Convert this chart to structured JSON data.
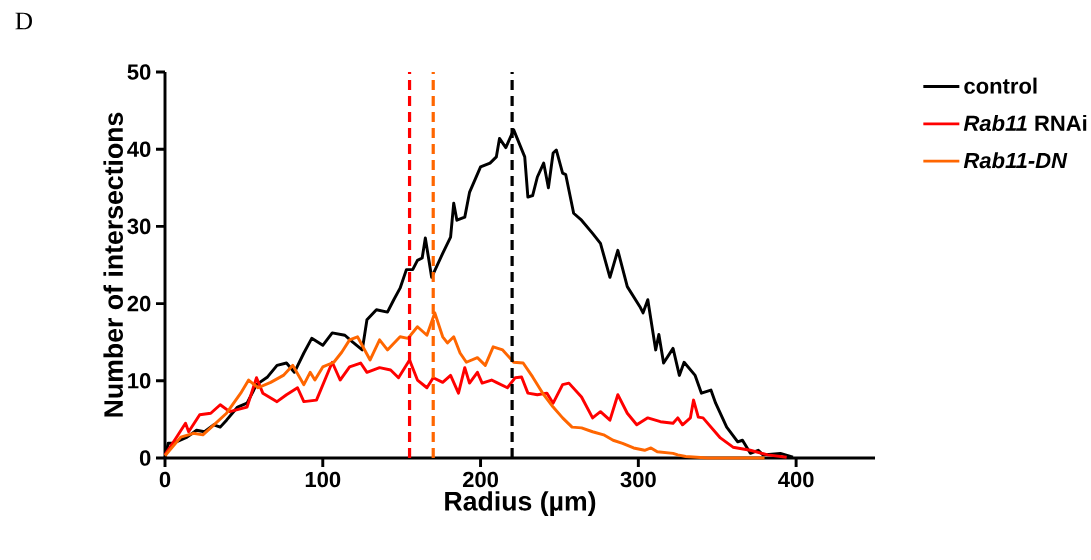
{
  "chart_data": {
    "type": "line",
    "xlabel": "Radius (µm)",
    "ylabel": "Number of intersections",
    "annotations": [
      "D"
    ],
    "xlim": [
      0,
      450
    ],
    "ylim": [
      0,
      50
    ],
    "xticks": [
      0,
      100,
      200,
      300,
      400
    ],
    "yticks": [
      0,
      10,
      20,
      30,
      40,
      50
    ],
    "legend": "top right",
    "marker": "none",
    "line_style": "solid",
    "series": [
      {
        "name": "control",
        "color": "#000000",
        "x": [
          0,
          2,
          5,
          14,
          20,
          25,
          31,
          35,
          39,
          46,
          52,
          58,
          65,
          71,
          77,
          82,
          88,
          93,
          100,
          106,
          114,
          119,
          125,
          128,
          134,
          141,
          145,
          149,
          153,
          157,
          160,
          163,
          165,
          169,
          176,
          181,
          183,
          185,
          190,
          193,
          200,
          206,
          210,
          212,
          216,
          221,
          228,
          230,
          233,
          236,
          240,
          243,
          246,
          248,
          252,
          254,
          259,
          264,
          271,
          276,
          282,
          287,
          293,
          301,
          303,
          306,
          311,
          313,
          316,
          322,
          326,
          329,
          336,
          340,
          346,
          349,
          356,
          363,
          366,
          371,
          376,
          379,
          390,
          398
        ],
        "values": [
          0,
          1.9,
          1.9,
          2.7,
          3.6,
          3.4,
          4.3,
          4,
          4.9,
          6.6,
          7.1,
          9.5,
          10.5,
          12,
          12.3,
          11.1,
          13.6,
          15.5,
          14.6,
          16.2,
          15.9,
          15,
          14,
          17.9,
          19.2,
          18.9,
          20.5,
          22,
          24.4,
          24.4,
          25.6,
          25.9,
          28.5,
          23.4,
          26.5,
          28.6,
          33,
          30.8,
          31.2,
          34.4,
          37.7,
          38.2,
          39,
          41.4,
          40.2,
          42.5,
          39,
          33.8,
          34,
          36.4,
          38.2,
          35,
          39.5,
          39.9,
          36.9,
          36.7,
          31.7,
          30.8,
          29.1,
          27.8,
          23.4,
          26.9,
          22.2,
          19.6,
          18.8,
          20.5,
          14,
          16,
          12.3,
          14.2,
          10.7,
          12.4,
          10.7,
          8.4,
          8.8,
          7.1,
          4,
          2.1,
          2.3,
          0.6,
          1,
          0.4,
          0.6,
          0.1
        ]
      },
      {
        "name": "*Rab11* RNAi",
        "color": "#ff0000",
        "x": [
          0,
          7,
          13,
          15,
          22,
          29,
          35,
          41,
          52,
          58,
          62,
          71,
          77,
          84,
          88,
          96,
          106,
          111,
          117,
          124,
          128,
          136,
          143,
          148,
          155,
          160,
          166,
          170,
          176,
          181,
          186,
          190,
          193,
          198,
          201,
          207,
          210,
          217,
          222,
          226,
          230,
          236,
          242,
          246,
          252,
          256,
          264,
          271,
          276,
          282,
          287,
          293,
          299,
          306,
          314,
          322,
          325,
          328,
          333,
          335,
          338,
          341,
          352,
          360,
          371,
          382,
          394
        ],
        "values": [
          0.4,
          2.6,
          4.5,
          3.4,
          5.6,
          5.8,
          6.9,
          6,
          6.6,
          10.4,
          8.4,
          7.3,
          8.2,
          9.1,
          7.3,
          7.5,
          12.4,
          10.1,
          11.8,
          12.3,
          11.1,
          11.7,
          11.4,
          10.4,
          12.7,
          10.1,
          9.1,
          10.4,
          9.8,
          10.7,
          8.4,
          11.7,
          9.7,
          11.1,
          9.7,
          10.1,
          9.8,
          9.1,
          10.4,
          10.5,
          8.4,
          8.2,
          8.4,
          7.1,
          9.5,
          9.7,
          7.9,
          5.2,
          6,
          4.9,
          8.2,
          5.8,
          4.3,
          5.2,
          4.7,
          4.5,
          5.2,
          4.3,
          5.2,
          7.5,
          5.3,
          5.2,
          2.6,
          1.4,
          1,
          0.4,
          0.1
        ]
      },
      {
        "name": "*Rab11-DN*",
        "color": "#ff6600",
        "x": [
          0,
          10,
          18,
          24,
          31,
          39,
          48,
          53,
          59,
          67,
          75,
          81,
          88,
          92,
          95,
          100,
          107,
          112,
          117,
          122,
          130,
          136,
          141,
          149,
          154,
          160,
          166,
          171,
          176,
          179,
          183,
          187,
          191,
          198,
          203,
          208,
          214,
          221,
          227,
          233,
          240,
          246,
          252,
          258,
          264,
          271,
          278,
          284,
          290,
          297,
          304,
          308,
          312,
          322,
          325,
          330,
          344,
          380
        ],
        "values": [
          0.3,
          2.7,
          3.2,
          3,
          4.3,
          5.8,
          8.4,
          10.1,
          9.1,
          9.8,
          10.7,
          12,
          9.5,
          11.1,
          10.1,
          11.8,
          12.4,
          13.7,
          15.3,
          15.7,
          12.7,
          15.3,
          14,
          15.7,
          15.5,
          17,
          15.9,
          18.8,
          15.7,
          14.9,
          15.7,
          13.6,
          12.4,
          13,
          12,
          14.4,
          14,
          12.4,
          12.3,
          10.5,
          8.2,
          6.6,
          5.2,
          4,
          3.9,
          3.4,
          3,
          2.3,
          1.9,
          1.3,
          1,
          1.3,
          0.8,
          0.6,
          0.4,
          0.2,
          0,
          0
        ]
      }
    ],
    "ref_lines": [
      {
        "axis": "x",
        "value": 155,
        "color": "#ff0000",
        "line_style": "dashed"
      },
      {
        "axis": "x",
        "value": 170,
        "color": "#ff6600",
        "line_style": "dashed"
      },
      {
        "axis": "x",
        "value": 220,
        "color": "#000000",
        "line_style": "dashed"
      }
    ]
  }
}
